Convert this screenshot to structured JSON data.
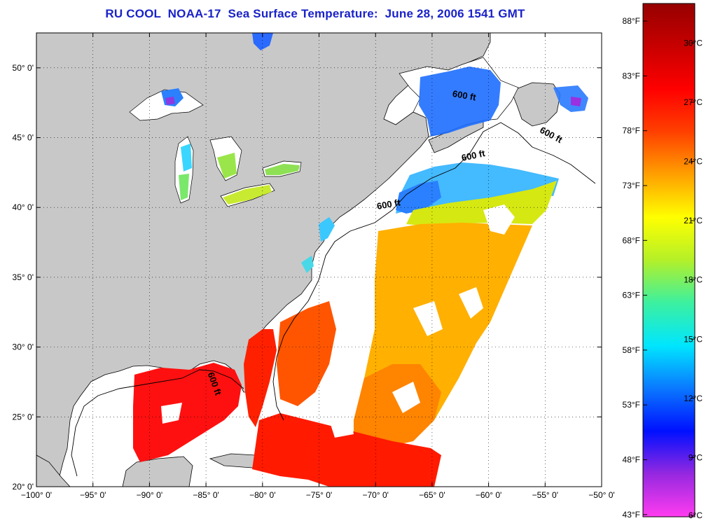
{
  "title": "RU COOL  NOAA-17  Sea Surface Temperature:  June 28, 2006 1541 GMT",
  "map": {
    "lon_range": [
      -100,
      -50
    ],
    "lat_range": [
      20,
      52.5
    ],
    "x_ticks": [
      {
        "value": -100,
        "label": "−100° 0'"
      },
      {
        "value": -95,
        "label": "−95° 0'"
      },
      {
        "value": -90,
        "label": "−90° 0'"
      },
      {
        "value": -85,
        "label": "−85° 0'"
      },
      {
        "value": -80,
        "label": "−80° 0'"
      },
      {
        "value": -75,
        "label": "−75° 0'"
      },
      {
        "value": -70,
        "label": "−70° 0'"
      },
      {
        "value": -65,
        "label": "−65° 0'"
      },
      {
        "value": -60,
        "label": "−60° 0'"
      },
      {
        "value": -55,
        "label": "−55° 0'"
      },
      {
        "value": -50,
        "label": "−50° 0'"
      }
    ],
    "y_ticks": [
      {
        "value": 20,
        "label": "20° 0'"
      },
      {
        "value": 25,
        "label": "25° 0'"
      },
      {
        "value": 30,
        "label": "30° 0'"
      },
      {
        "value": 35,
        "label": "35° 0'"
      },
      {
        "value": 40,
        "label": "40° 0'"
      },
      {
        "value": 45,
        "label": "45° 0'"
      },
      {
        "value": 50,
        "label": "50° 0'"
      }
    ],
    "contour_labels": [
      {
        "text": "600 ft",
        "lon": -62.2,
        "lat": 47.8,
        "angle": 10
      },
      {
        "text": "600 ft",
        "lon": -54.6,
        "lat": 45.0,
        "angle": 28
      },
      {
        "text": "600 ft",
        "lon": -61.3,
        "lat": 43.5,
        "angle": -12
      },
      {
        "text": "600 ft",
        "lon": -68.8,
        "lat": 40.0,
        "angle": -10
      },
      {
        "text": "600 ft",
        "lon": -84.5,
        "lat": 27.3,
        "angle": 70
      }
    ],
    "colors": {
      "land": "#c8c8c8",
      "water": "#ffffff",
      "coast": "#000000"
    }
  },
  "colorbar": {
    "min_c": 6,
    "max_c": 32,
    "celsius_ticks": [
      {
        "value": 30,
        "label": "30°C"
      },
      {
        "value": 27,
        "label": "27°C"
      },
      {
        "value": 24,
        "label": "24°C"
      },
      {
        "value": 21,
        "label": "21°C"
      },
      {
        "value": 18,
        "label": "18°C"
      },
      {
        "value": 15,
        "label": "15°C"
      },
      {
        "value": 12,
        "label": "12°C"
      },
      {
        "value": 9,
        "label": "9°C"
      },
      {
        "value": 6,
        "label": "6°C"
      }
    ],
    "fahrenheit_ticks": [
      {
        "value": 88,
        "label": "88°F"
      },
      {
        "value": 83,
        "label": "83°F"
      },
      {
        "value": 78,
        "label": "78°F"
      },
      {
        "value": 73,
        "label": "73°F"
      },
      {
        "value": 68,
        "label": "68°F"
      },
      {
        "value": 63,
        "label": "63°F"
      },
      {
        "value": 58,
        "label": "58°F"
      },
      {
        "value": 53,
        "label": "53°F"
      },
      {
        "value": 48,
        "label": "48°F"
      },
      {
        "value": 43,
        "label": "43°F"
      }
    ],
    "gradient": [
      "#ff3cf0",
      "#9628e0",
      "#0010ff",
      "#0a78ff",
      "#00e6ff",
      "#3cf0a0",
      "#b4f028",
      "#ffff00",
      "#ffa000",
      "#ff4000",
      "#ff0000",
      "#c80000",
      "#960000"
    ]
  }
}
